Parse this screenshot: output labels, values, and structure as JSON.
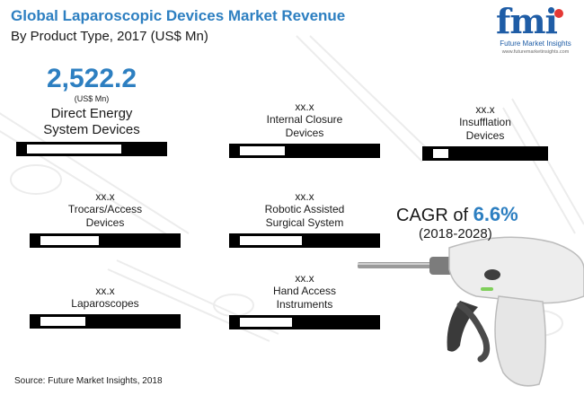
{
  "header": {
    "title": "Global Laparoscopic Devices Market Revenue",
    "subtitle": "By Product Type, 2017 (US$ Mn)"
  },
  "logo": {
    "mark": "fmi",
    "name": "Future Market Insights",
    "url": "www.futuremarketinsights.com"
  },
  "colors": {
    "accent": "#2d7fc1",
    "bar": "#000000",
    "fill": "#ffffff",
    "logo": "#1f5da6"
  },
  "chart_data": {
    "type": "bar",
    "title": "Global Laparoscopic Devices Market Revenue",
    "subtitle": "By Product Type, 2017 (US$ Mn)",
    "categories": [
      "Direct Energy System Devices",
      "Internal Closure Devices",
      "Insufflation Devices",
      "Trocars/Access Devices",
      "Robotic Assisted Surgical System",
      "Laparoscopes",
      "Hand Access Instruments"
    ],
    "value_labels": [
      "2,522.2",
      "xx.x",
      "xx.x",
      "xx.x",
      "xx.x",
      "xx.x",
      "xx.x"
    ],
    "unit_label": "(US$ Mn)",
    "values": [
      2522.2,
      null,
      null,
      null,
      null,
      null,
      null
    ],
    "bar_fill_fraction": [
      0.73,
      0.35,
      0.15,
      0.45,
      0.48,
      0.35,
      0.4
    ],
    "ylim": [
      0,
      2522.2
    ],
    "grid": false,
    "legend": "none"
  },
  "cagr": {
    "prefix": "CAGR of ",
    "value": "6.6%",
    "period": "(2018-2028)"
  },
  "source": "Source: Future Market Insights, 2018"
}
